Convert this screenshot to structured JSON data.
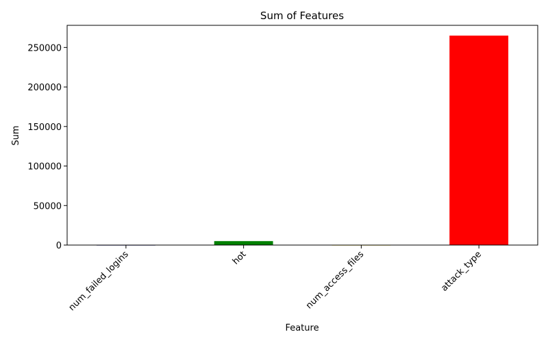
{
  "chart_data": {
    "type": "bar",
    "title": "Sum of Features",
    "xlabel": "Feature",
    "ylabel": "Sum",
    "categories": [
      "num_failed_logins",
      "hot",
      "num_access_files",
      "attack_type"
    ],
    "values": [
      300,
      5000,
      300,
      265000
    ],
    "colors": [
      "#000080",
      "#008000",
      "#ffd700",
      "#ff0000"
    ],
    "ylim": [
      0,
      278000
    ],
    "yticks": [
      0,
      50000,
      100000,
      150000,
      200000,
      250000
    ],
    "ytick_labels": [
      "0",
      "50000",
      "100000",
      "150000",
      "200000",
      "250000"
    ],
    "grid": false,
    "legend": "none"
  }
}
